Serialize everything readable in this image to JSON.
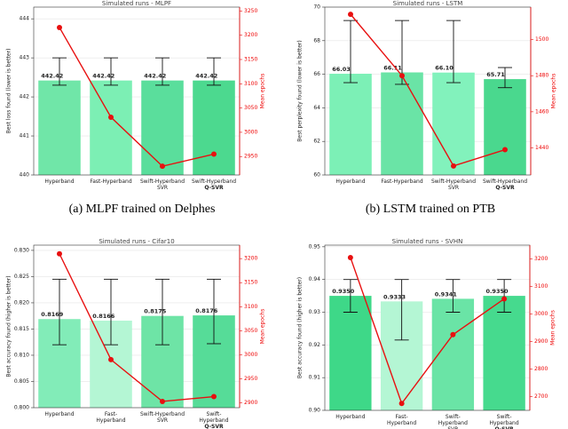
{
  "chart_data": [
    {
      "type": "bar",
      "title": "Simulated runs - MLPF",
      "caption": "(a) MLPF trained on Delphes",
      "ylabel": "Best loss found (lower is better)",
      "y2label": "Mean epochs",
      "categories": [
        [
          "Hyperband"
        ],
        [
          "Fast-Hyperband"
        ],
        [
          "Swift-Hyperband",
          "SVR"
        ],
        [
          "Swift-Hyperband",
          "Q-SVR"
        ]
      ],
      "series": [
        {
          "type": "bar",
          "colors": [
            "#70e6a8",
            "#7cefb4",
            "#5ade9c",
            "#4cd98f"
          ],
          "values": [
            442.42,
            442.42,
            442.42,
            442.42
          ],
          "whisker_low": [
            442.3,
            442.3,
            442.3,
            442.3
          ],
          "whisker_high": [
            443.0,
            443.0,
            443.0,
            443.0
          ]
        },
        {
          "type": "line",
          "axis": "y2",
          "color": "#e81010",
          "values": [
            3216,
            3031,
            2930,
            2955
          ]
        }
      ],
      "ylim": [
        440,
        444.3
      ],
      "yticks": [
        440,
        441,
        442,
        443,
        444
      ],
      "y2lim": [
        2912,
        3258
      ],
      "y2ticks": [
        2950,
        3000,
        3050,
        3100,
        3150,
        3200,
        3250
      ],
      "grid": true
    },
    {
      "type": "bar",
      "title": "Simulated runs - LSTM",
      "caption": "(b) LSTM trained on PTB",
      "ylabel": "Best perplexity found (lower is better)",
      "y2label": "Mean epochs",
      "categories": [
        [
          "Hyperband"
        ],
        [
          "Fast-Hyperband"
        ],
        [
          "Swift-Hyperband",
          "SVR"
        ],
        [
          "Swift-Hyperband",
          "Q-SVR"
        ]
      ],
      "series": [
        {
          "type": "bar",
          "colors": [
            "#7cf0b6",
            "#6ae4a6",
            "#82f2bc",
            "#4ad88e"
          ],
          "values": [
            66.03,
            66.11,
            66.1,
            65.71
          ],
          "value_labels": [
            "66.03",
            "66.11",
            "66.10",
            "65.71"
          ],
          "whisker_low": [
            65.5,
            65.4,
            65.5,
            65.2
          ],
          "whisker_high": [
            69.2,
            69.2,
            69.2,
            66.4
          ]
        },
        {
          "type": "line",
          "axis": "y2",
          "color": "#e81010",
          "values": [
            1514,
            1480,
            1430,
            1439
          ]
        }
      ],
      "ylim": [
        60,
        70
      ],
      "yticks": [
        60,
        62,
        64,
        66,
        68,
        70
      ],
      "y2lim": [
        1425,
        1518
      ],
      "y2ticks": [
        1440,
        1460,
        1480,
        1500
      ],
      "grid": true
    },
    {
      "type": "bar",
      "title": "Simulated runs - Cifar10",
      "ylabel": "Best accuracy found (higher is better)",
      "y2label": "Mean epochs",
      "categories": [
        [
          "Hyperband"
        ],
        [
          "Fast-",
          "Hyperband"
        ],
        [
          "Swift-Hyperband",
          "SVR"
        ],
        [
          "Swift-",
          "Hyperband",
          "Q-SVR"
        ]
      ],
      "series": [
        {
          "type": "bar",
          "colors": [
            "#82ecb8",
            "#b4f6d4",
            "#6ee4a6",
            "#56dc98"
          ],
          "values": [
            0.8169,
            0.8166,
            0.8175,
            0.8176
          ],
          "whisker_low": [
            0.812,
            0.812,
            0.812,
            0.8122
          ],
          "whisker_high": [
            0.8245,
            0.8245,
            0.8245,
            0.8245
          ]
        },
        {
          "type": "line",
          "axis": "y2",
          "color": "#e81010",
          "values": [
            3210,
            2990,
            2903,
            2913
          ]
        }
      ],
      "ylim": [
        0.8,
        0.831
      ],
      "yticks": [
        {
          "value": 0.8,
          "label": "0.800"
        },
        0.805,
        {
          "value": 0.81,
          "label": "0.810"
        },
        0.815,
        {
          "value": 0.82,
          "label": "0.820"
        },
        0.825,
        {
          "value": 0.83,
          "label": "0.830"
        }
      ],
      "y2lim": [
        2890,
        3228
      ],
      "y2ticks": [
        2900,
        2950,
        3000,
        3050,
        3100,
        3150,
        3200
      ],
      "grid": true
    },
    {
      "type": "bar",
      "title": "Simulated runs - SVHN",
      "ylabel": "Best accuracy found (higher is better)",
      "y2label": "Mean epochs",
      "categories": [
        [
          "Hyperband"
        ],
        [
          "Fast-",
          "Hyperband"
        ],
        [
          "Swift-",
          "Hyperband",
          "SVR"
        ],
        [
          "Swift-",
          "Hyperband",
          "Q-SVR"
        ]
      ],
      "series": [
        {
          "type": "bar",
          "colors": [
            "#3ed888",
            "#b4f6d4",
            "#6ae4a6",
            "#46da8e"
          ],
          "values": [
            0.935,
            0.9333,
            0.9341,
            0.935
          ],
          "value_labels": [
            "0.9350",
            "0.9333",
            "0.9341",
            "0.9350"
          ],
          "whisker_low": [
            0.93,
            0.9215,
            0.93,
            0.93
          ],
          "whisker_high": [
            0.94,
            0.94,
            0.94,
            0.94
          ]
        },
        {
          "type": "line",
          "axis": "y2",
          "color": "#e81010",
          "values": [
            3205,
            2675,
            2925,
            3055
          ]
        }
      ],
      "ylim": [
        0.9,
        0.9505
      ],
      "yticks": [
        {
          "value": 0.9,
          "label": "0.90"
        },
        0.91,
        0.92,
        0.93,
        0.94,
        0.95
      ],
      "y2lim": [
        2650,
        3250
      ],
      "y2ticks": [
        2700,
        2800,
        2900,
        3000,
        3100,
        3200
      ],
      "grid": true
    }
  ]
}
